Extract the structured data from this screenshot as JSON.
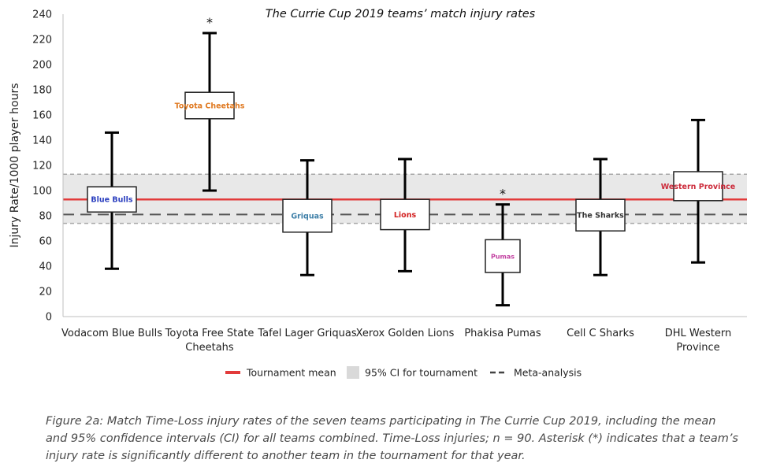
{
  "chart_data": {
    "type": "boxplot",
    "title": "The Currie Cup 2019 teams’ match injury rates",
    "ylabel": "Injury Rate/1000 player hours",
    "xlabel": "",
    "ylim": [
      0,
      240
    ],
    "yticks": [
      0,
      20,
      40,
      60,
      80,
      100,
      120,
      140,
      160,
      180,
      200,
      220,
      240
    ],
    "grid": false,
    "legend_position": "bottom",
    "series": [
      {
        "category": "Vodacom Blue Bulls",
        "logo": "Blue Bulls",
        "mean": 93,
        "ci_low": 38,
        "ci_high": 146,
        "box_low": 83,
        "box_high": 103,
        "significant": false
      },
      {
        "category": "Toyota Free State Cheetahs",
        "logo": "Toyota Cheetahs",
        "mean": 168,
        "ci_low": 100,
        "ci_high": 225,
        "box_low": 157,
        "box_high": 178,
        "significant": true
      },
      {
        "category": "Tafel Lager Griquas",
        "logo": "Griquas",
        "mean": 81,
        "ci_low": 33,
        "ci_high": 124,
        "box_low": 67,
        "box_high": 93,
        "significant": false
      },
      {
        "category": "Xerox Golden Lions",
        "logo": "Lions",
        "mean": 81,
        "ci_low": 36,
        "ci_high": 125,
        "box_low": 69,
        "box_high": 93,
        "significant": false
      },
      {
        "category": "Phakisa Pumas",
        "logo": "Pumas",
        "mean": 49,
        "ci_low": 9,
        "ci_high": 89,
        "box_low": 35,
        "box_high": 61,
        "significant": true
      },
      {
        "category": "Cell C Sharks",
        "logo": "The Sharks",
        "mean": 82,
        "ci_low": 33,
        "ci_high": 125,
        "box_low": 68,
        "box_high": 93,
        "significant": false
      },
      {
        "category": "DHL Western Province",
        "logo": "Western Province",
        "mean": 103,
        "ci_low": 43,
        "ci_high": 156,
        "box_low": 92,
        "box_high": 115,
        "significant": false
      }
    ],
    "category_labels": [
      [
        "Vodacom Blue Bulls"
      ],
      [
        "Toyota Free State",
        "Cheetahs"
      ],
      [
        "Tafel Lager Griquas"
      ],
      [
        "Xerox Golden Lions"
      ],
      [
        "Phakisa Pumas"
      ],
      [
        "Cell C Sharks"
      ],
      [
        "DHL Western",
        "Province"
      ]
    ],
    "reference": {
      "tournament_mean": 93,
      "ci_band": [
        74,
        113
      ],
      "meta_analysis": 81
    },
    "significance_marker": "*",
    "legend": [
      {
        "label": "Tournament mean",
        "style": "solid-line",
        "color": "#e23b3b"
      },
      {
        "label": "95% CI for tournament",
        "style": "band",
        "color": "#d9d9d9"
      },
      {
        "label": "Meta-analysis",
        "style": "dashed-line",
        "color": "#444444"
      }
    ],
    "colors": {
      "mean_line": "#e23b3b",
      "band": "#e8e8e8",
      "band_edge": "#a8a8a8",
      "meta_line": "#555555",
      "whisker": "#000000",
      "box_stroke": "#222222"
    }
  },
  "caption": "Figure 2a: Match Time-Loss injury rates of the seven teams participating in The Currie Cup 2019, including the mean and 95% confidence intervals (CI) for all teams combined. Time-Loss injuries; n = 90. Asterisk (*) indicates that a team’s injury rate is significantly different to another team in the tournament for that year."
}
